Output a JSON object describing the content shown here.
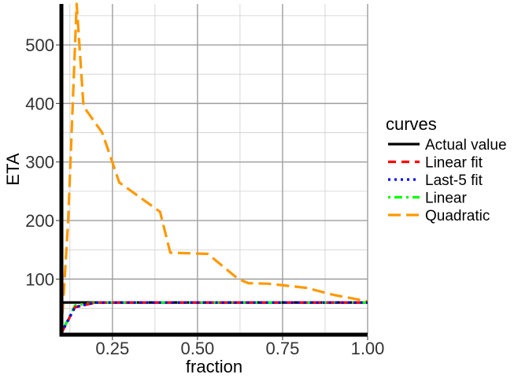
{
  "chart_data": {
    "type": "line",
    "xlabel": "fraction",
    "ylabel": "ETA",
    "xlim": [
      0.1,
      1.0
    ],
    "ylim": [
      5,
      570
    ],
    "x_ticks": [
      0.25,
      0.5,
      0.75,
      1.0
    ],
    "x_tick_labels": [
      "0.25",
      "0.50",
      "0.75",
      "1.00"
    ],
    "y_ticks": [
      100,
      200,
      300,
      400,
      500
    ],
    "y_tick_labels": [
      "100",
      "200",
      "300",
      "400",
      "500"
    ],
    "grid": true,
    "legend": {
      "title": "curves",
      "placement": "right"
    },
    "series": [
      {
        "name": "Actual value",
        "color": "#000000",
        "dash": "solid",
        "x": [
          0.1,
          1.0
        ],
        "y": [
          60,
          60
        ]
      },
      {
        "name": "Linear fit",
        "color": "#ff0000",
        "dash": "dashed",
        "x": [
          0.1,
          0.14,
          0.2,
          0.4,
          0.6,
          0.8,
          1.0
        ],
        "y": [
          8,
          52,
          60,
          60,
          60,
          60,
          60
        ]
      },
      {
        "name": "Last-5 fit",
        "color": "#0000ff",
        "dash": "dotted",
        "x": [
          0.1,
          0.14,
          0.2,
          0.4,
          0.6,
          0.8,
          1.0
        ],
        "y": [
          8,
          52,
          60,
          60,
          60,
          60,
          60
        ]
      },
      {
        "name": "Linear",
        "color": "#00ff00",
        "dash": "dotdash",
        "x": [
          0.1,
          0.14,
          0.2,
          0.4,
          0.6,
          0.8,
          1.0
        ],
        "y": [
          8,
          55,
          60,
          60,
          60,
          60,
          60
        ]
      },
      {
        "name": "Quadratic",
        "color": "#ff9900",
        "dash": "longdash",
        "x": [
          0.1,
          0.12,
          0.145,
          0.165,
          0.22,
          0.27,
          0.33,
          0.39,
          0.42,
          0.53,
          0.62,
          0.65,
          0.71,
          0.82,
          0.9,
          1.0
        ],
        "y": [
          10,
          200,
          570,
          395,
          350,
          265,
          240,
          215,
          145,
          143,
          100,
          93,
          92,
          85,
          73,
          62
        ]
      }
    ]
  }
}
